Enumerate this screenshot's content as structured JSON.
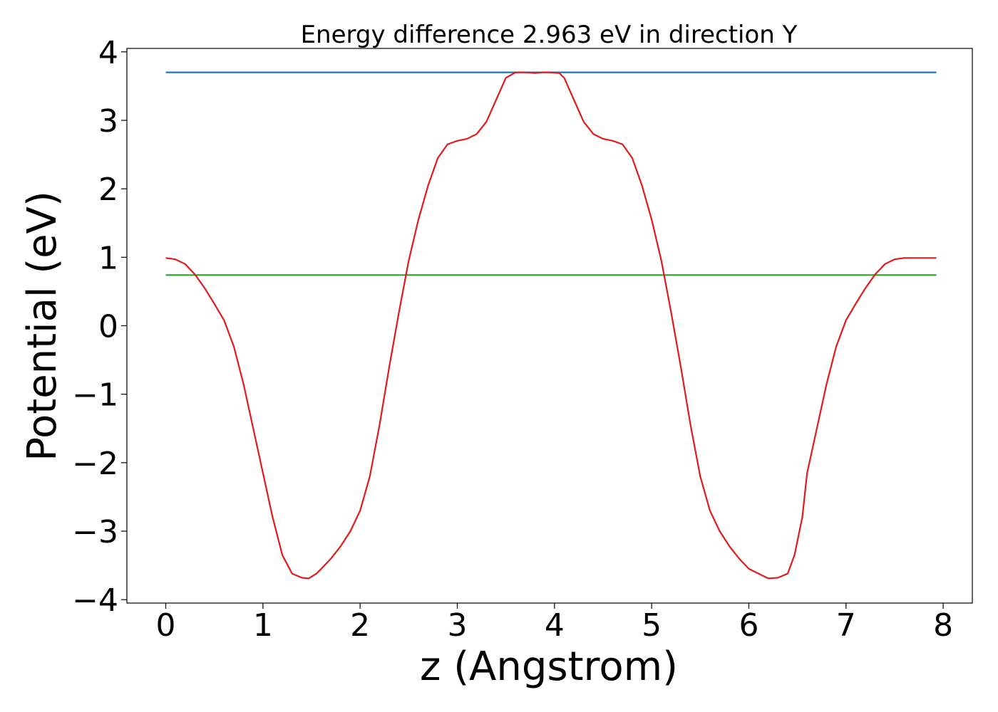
{
  "chart_data": {
    "type": "line",
    "title": "Energy difference 2.963 eV in direction Y",
    "xlabel": "z (Angstrom)",
    "ylabel": "Potential (eV)",
    "xlim": [
      -0.4,
      8.3
    ],
    "ylim": [
      -4.05,
      4.05
    ],
    "xticks": [
      0,
      1,
      2,
      3,
      4,
      5,
      6,
      7,
      8
    ],
    "yticks": [
      -4,
      -3,
      -2,
      -1,
      0,
      1,
      2,
      3,
      4
    ],
    "tick_labels_x": [
      "0",
      "1",
      "2",
      "3",
      "4",
      "5",
      "6",
      "7",
      "8"
    ],
    "tick_labels_y": [
      "−4",
      "−3",
      "−2",
      "−1",
      "0",
      "1",
      "2",
      "3",
      "4"
    ],
    "grid": false,
    "legend": "none",
    "series": [
      {
        "color": "#1f77b4",
        "x": [
          0,
          7.93
        ],
        "y": [
          3.7,
          3.7
        ]
      },
      {
        "color": "#2ca02c",
        "x": [
          0,
          7.93
        ],
        "y": [
          0.74,
          0.74
        ]
      },
      {
        "color": "#e31a1c",
        "x": [
          0.0,
          0.1,
          0.2,
          0.3,
          0.4,
          0.5,
          0.6,
          0.7,
          0.8,
          0.9,
          1.0,
          1.1,
          1.2,
          1.3,
          1.4,
          1.47,
          1.55,
          1.6,
          1.7,
          1.8,
          1.9,
          2.0,
          2.1,
          2.2,
          2.3,
          2.4,
          2.5,
          2.6,
          2.7,
          2.8,
          2.9,
          3.0,
          3.1,
          3.2,
          3.3,
          3.4,
          3.5,
          3.6,
          3.7,
          3.8,
          3.87,
          3.95,
          4.05,
          4.1,
          4.2,
          4.3,
          4.4,
          4.5,
          4.6,
          4.7,
          4.8,
          4.9,
          5.0,
          5.1,
          5.2,
          5.3,
          5.4,
          5.5,
          5.6,
          5.7,
          5.8,
          5.9,
          6.0,
          6.1,
          6.2,
          6.3,
          6.4,
          6.47,
          6.55,
          6.6,
          6.7,
          6.8,
          6.9,
          7.0,
          7.1,
          7.2,
          7.3,
          7.4,
          7.5,
          7.6,
          7.7,
          7.8,
          7.93
        ],
        "y": [
          0.99,
          0.97,
          0.9,
          0.75,
          0.55,
          0.32,
          0.08,
          -0.3,
          -0.85,
          -1.5,
          -2.15,
          -2.8,
          -3.35,
          -3.62,
          -3.68,
          -3.69,
          -3.62,
          -3.55,
          -3.4,
          -3.22,
          -3.0,
          -2.7,
          -2.2,
          -1.45,
          -0.6,
          0.2,
          0.95,
          1.55,
          2.05,
          2.45,
          2.65,
          2.7,
          2.73,
          2.8,
          2.98,
          3.3,
          3.62,
          3.7,
          3.7,
          3.69,
          3.7,
          3.7,
          3.69,
          3.62,
          3.3,
          2.98,
          2.8,
          2.73,
          2.7,
          2.65,
          2.45,
          2.05,
          1.55,
          0.95,
          0.2,
          -0.6,
          -1.45,
          -2.2,
          -2.7,
          -3.0,
          -3.22,
          -3.4,
          -3.55,
          -3.62,
          -3.69,
          -3.68,
          -3.62,
          -3.35,
          -2.8,
          -2.15,
          -1.5,
          -0.85,
          -0.3,
          0.08,
          0.32,
          0.55,
          0.75,
          0.9,
          0.97,
          0.99,
          0.99,
          0.99,
          0.99
        ]
      }
    ]
  }
}
